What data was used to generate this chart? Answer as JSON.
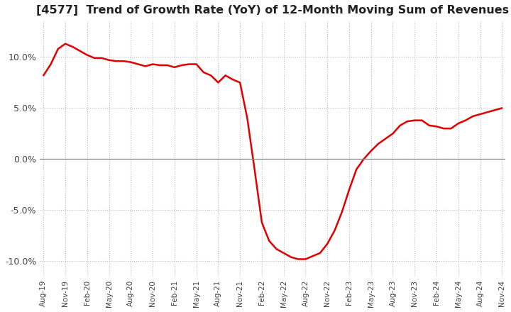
{
  "title": "[4577]  Trend of Growth Rate (YoY) of 12-Month Moving Sum of Revenues",
  "title_fontsize": 11.5,
  "line_color": "#e00000",
  "bg_color": "#ffffff",
  "grid_color": "#bbbbbb",
  "ylim": [
    -0.115,
    0.135
  ],
  "yticks": [
    -0.1,
    -0.05,
    0.0,
    0.05,
    0.1
  ],
  "ytick_labels": [
    "-10.0%",
    "-5.0%",
    "0.0%",
    "5.0%",
    "10.0%"
  ],
  "values": [
    0.082,
    0.093,
    0.108,
    0.113,
    0.11,
    0.106,
    0.102,
    0.099,
    0.099,
    0.097,
    0.096,
    0.096,
    0.095,
    0.093,
    0.091,
    0.093,
    0.092,
    0.092,
    0.09,
    0.092,
    0.093,
    0.093,
    0.085,
    0.082,
    0.075,
    0.082,
    0.078,
    0.075,
    0.04,
    -0.01,
    -0.062,
    -0.08,
    -0.088,
    -0.092,
    -0.096,
    -0.098,
    -0.098,
    -0.095,
    -0.092,
    -0.083,
    -0.07,
    -0.052,
    -0.03,
    -0.01,
    0.0,
    0.008,
    0.015,
    0.02,
    0.025,
    0.033,
    0.037,
    0.038,
    0.038,
    0.033,
    0.032,
    0.03,
    0.03,
    0.035,
    0.038,
    0.042,
    0.044,
    0.046,
    0.048,
    0.05
  ],
  "xtick_positions": [
    0,
    3,
    6,
    9,
    12,
    15,
    18,
    21,
    24,
    27,
    30,
    33,
    36,
    39,
    42,
    45,
    48,
    51,
    54,
    57,
    60,
    63
  ],
  "xtick_labels": [
    "Aug-19",
    "Nov-19",
    "Feb-20",
    "May-20",
    "Aug-20",
    "Nov-20",
    "Feb-21",
    "May-21",
    "Aug-21",
    "Nov-21",
    "Feb-22",
    "May-22",
    "Aug-22",
    "Nov-22",
    "Feb-23",
    "May-23",
    "Aug-23",
    "Nov-23",
    "Feb-24",
    "May-24",
    "Aug-24",
    "Nov-24"
  ]
}
